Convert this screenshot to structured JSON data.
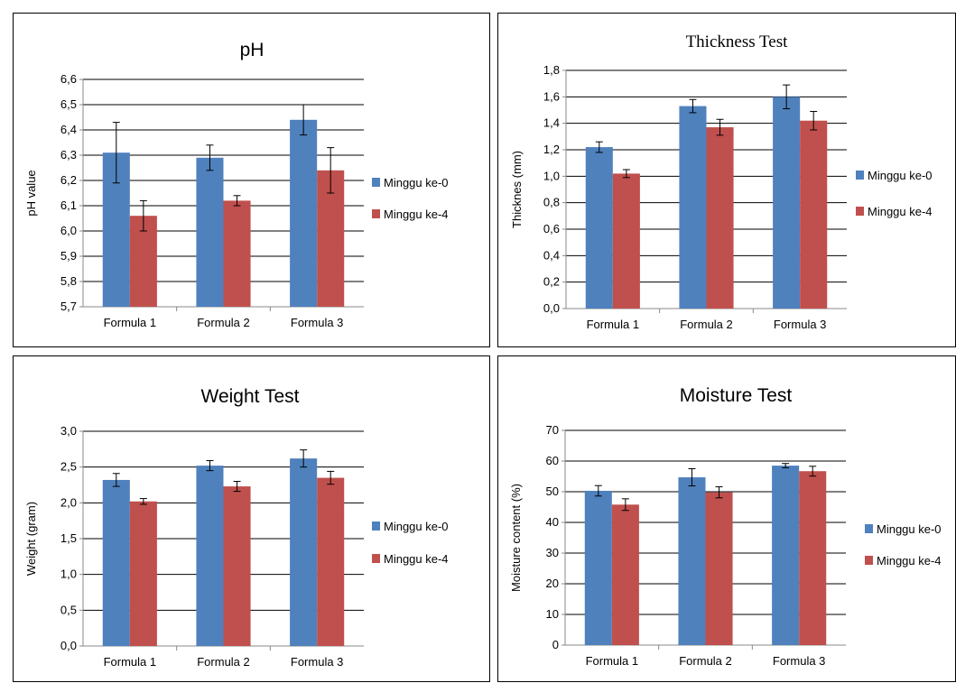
{
  "colors": {
    "series0": "#4F81BD",
    "series1": "#C0504D",
    "grid": "#000000",
    "axis": "#888888"
  },
  "chart_data": [
    {
      "type": "bar",
      "title": "pH",
      "xlabel": "",
      "ylabel": "pH value",
      "categories": [
        "Formula 1",
        "Formula 2",
        "Formula 3"
      ],
      "ylim": [
        5.7,
        6.6
      ],
      "yticks": [
        5.7,
        5.8,
        5.9,
        6.0,
        6.1,
        6.2,
        6.3,
        6.4,
        6.5,
        6.6
      ],
      "ytick_labels": [
        "5,7",
        "5,8",
        "5,9",
        "6,0",
        "6,1",
        "6,2",
        "6,3",
        "6,4",
        "6,5",
        "6,6"
      ],
      "series": [
        {
          "name": "Minggu ke-0",
          "values": [
            6.31,
            6.29,
            6.44
          ],
          "errors": [
            0.12,
            0.05,
            0.06
          ]
        },
        {
          "name": "Minggu ke-4",
          "values": [
            6.06,
            6.12,
            6.24
          ],
          "errors": [
            0.06,
            0.02,
            0.09
          ]
        }
      ],
      "grid": true,
      "legend": "right"
    },
    {
      "type": "bar",
      "title": "Thickness Test",
      "xlabel": "",
      "ylabel": "Thicknes (mm)",
      "categories": [
        "Formula 1",
        "Formula 2",
        "Formula 3"
      ],
      "ylim": [
        0.0,
        1.8
      ],
      "yticks": [
        0.0,
        0.2,
        0.4,
        0.6,
        0.8,
        1.0,
        1.2,
        1.4,
        1.6,
        1.8
      ],
      "ytick_labels": [
        "0,0",
        "0,2",
        "0,4",
        "0,6",
        "0,8",
        "1,0",
        "1,2",
        "1,4",
        "1,6",
        "1,8"
      ],
      "series": [
        {
          "name": "Minggu ke-0",
          "values": [
            1.22,
            1.53,
            1.6
          ],
          "errors": [
            0.04,
            0.05,
            0.09
          ]
        },
        {
          "name": "Minggu ke-4",
          "values": [
            1.02,
            1.37,
            1.42
          ],
          "errors": [
            0.03,
            0.06,
            0.07
          ]
        }
      ],
      "grid": true,
      "legend": "right"
    },
    {
      "type": "bar",
      "title": "Weight Test",
      "xlabel": "",
      "ylabel": "Weight  (gram)",
      "categories": [
        "Formula 1",
        "Formula 2",
        "Formula 3"
      ],
      "ylim": [
        0.0,
        3.0
      ],
      "yticks": [
        0.0,
        0.5,
        1.0,
        1.5,
        2.0,
        2.5,
        3.0
      ],
      "ytick_labels": [
        "0,0",
        "0,5",
        "1,0",
        "1,5",
        "2,0",
        "2,5",
        "3,0"
      ],
      "series": [
        {
          "name": "Minggu ke-0",
          "values": [
            2.32,
            2.52,
            2.62
          ],
          "errors": [
            0.09,
            0.07,
            0.12
          ]
        },
        {
          "name": "Minggu ke-4",
          "values": [
            2.02,
            2.23,
            2.35
          ],
          "errors": [
            0.04,
            0.07,
            0.09
          ]
        }
      ],
      "grid": true,
      "legend": "right"
    },
    {
      "type": "bar",
      "title": "Moisture Test",
      "xlabel": "",
      "ylabel": "Moisture content (%)",
      "categories": [
        "Formula 1",
        "Formula 2",
        "Formula 3"
      ],
      "ylim": [
        0,
        70
      ],
      "yticks": [
        0,
        10,
        20,
        30,
        40,
        50,
        60,
        70
      ],
      "ytick_labels": [
        "0",
        "10",
        "20",
        "30",
        "40",
        "50",
        "60",
        "70"
      ],
      "series": [
        {
          "name": "Minggu ke-0",
          "values": [
            50.3,
            54.7,
            58.5
          ],
          "errors": [
            1.7,
            2.8,
            0.7
          ]
        },
        {
          "name": "Minggu ke-4",
          "values": [
            45.8,
            49.8,
            56.7
          ],
          "errors": [
            1.9,
            1.8,
            1.6
          ]
        }
      ],
      "grid": true,
      "legend": "right"
    }
  ]
}
